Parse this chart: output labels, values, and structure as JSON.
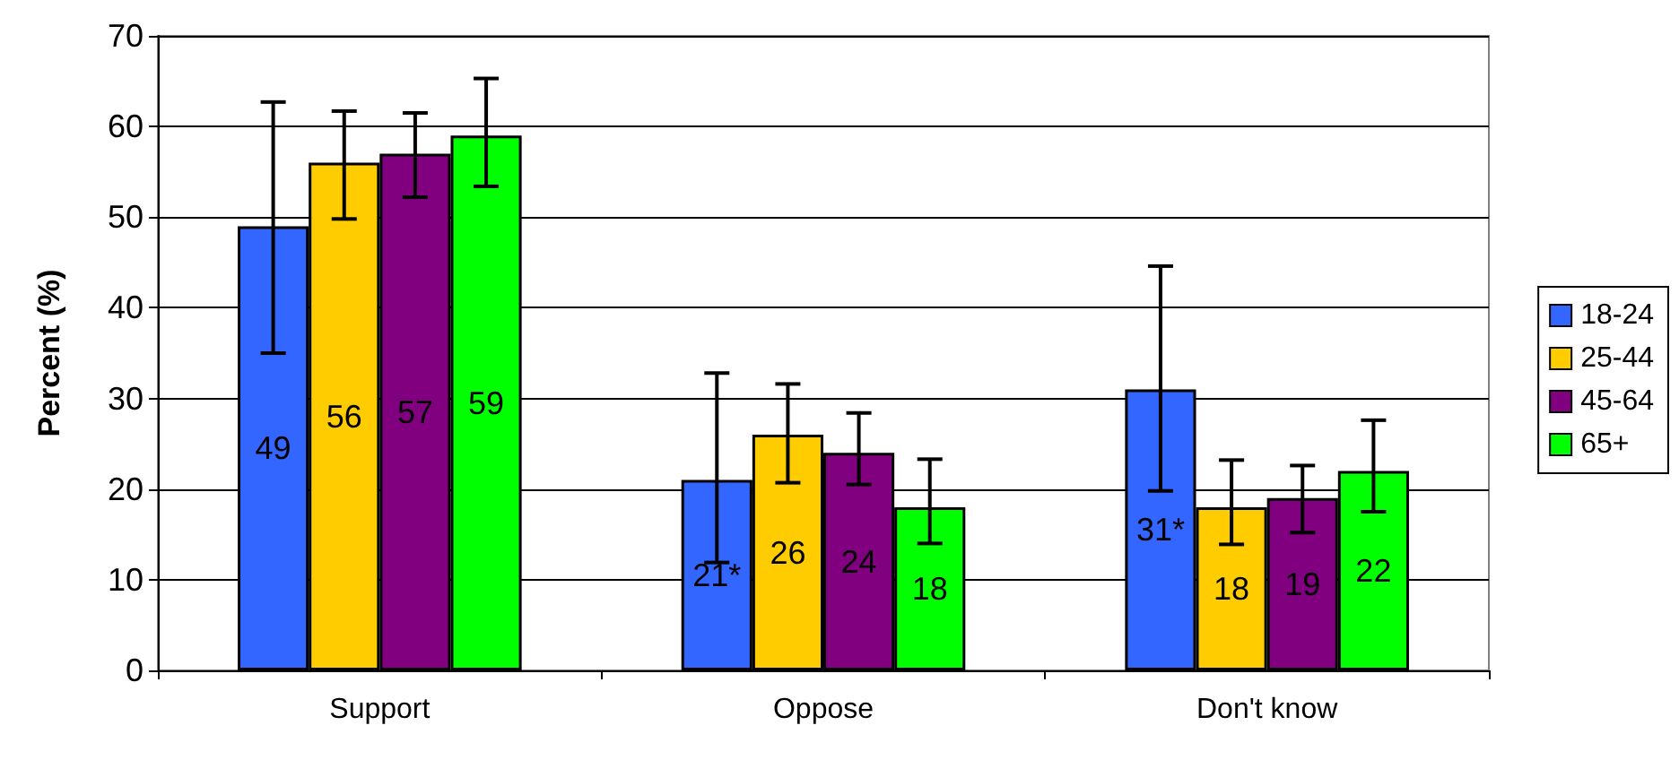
{
  "chart_data": {
    "type": "bar",
    "ylabel": "Percent (%)",
    "categories": [
      "Support",
      "Oppose",
      "Don't know"
    ],
    "series": [
      {
        "name": "18-24",
        "color": "#3366ff",
        "values": [
          49,
          21,
          31
        ],
        "value_labels": [
          "49",
          "21*",
          "31*"
        ],
        "errors": [
          [
            35,
            62.7
          ],
          [
            11.9,
            32.8
          ],
          [
            19.8,
            44.6
          ]
        ]
      },
      {
        "name": "25-44",
        "color": "#ffcc00",
        "values": [
          56,
          26,
          18
        ],
        "value_labels": [
          "56",
          "26",
          "18"
        ],
        "errors": [
          [
            49.8,
            61.7
          ],
          [
            20.7,
            31.6
          ],
          [
            13.9,
            23.2
          ]
        ]
      },
      {
        "name": "45-64",
        "color": "#800080",
        "values": [
          57,
          24,
          19
        ],
        "value_labels": [
          "57",
          "24",
          "19"
        ],
        "errors": [
          [
            52.2,
            61.5
          ],
          [
            20.5,
            28.4
          ],
          [
            15.2,
            22.6
          ]
        ]
      },
      {
        "name": "65+",
        "color": "#00ff00",
        "values": [
          59,
          18,
          22
        ],
        "value_labels": [
          "59",
          "18",
          "22"
        ],
        "errors": [
          [
            53.4,
            65.3
          ],
          [
            14,
            23.3
          ],
          [
            17.5,
            27.6
          ]
        ]
      }
    ],
    "ylim": [
      0,
      70
    ],
    "yticks": [
      0,
      10,
      20,
      30,
      40,
      50,
      60,
      70
    ],
    "grid": "y",
    "legend": "right"
  }
}
